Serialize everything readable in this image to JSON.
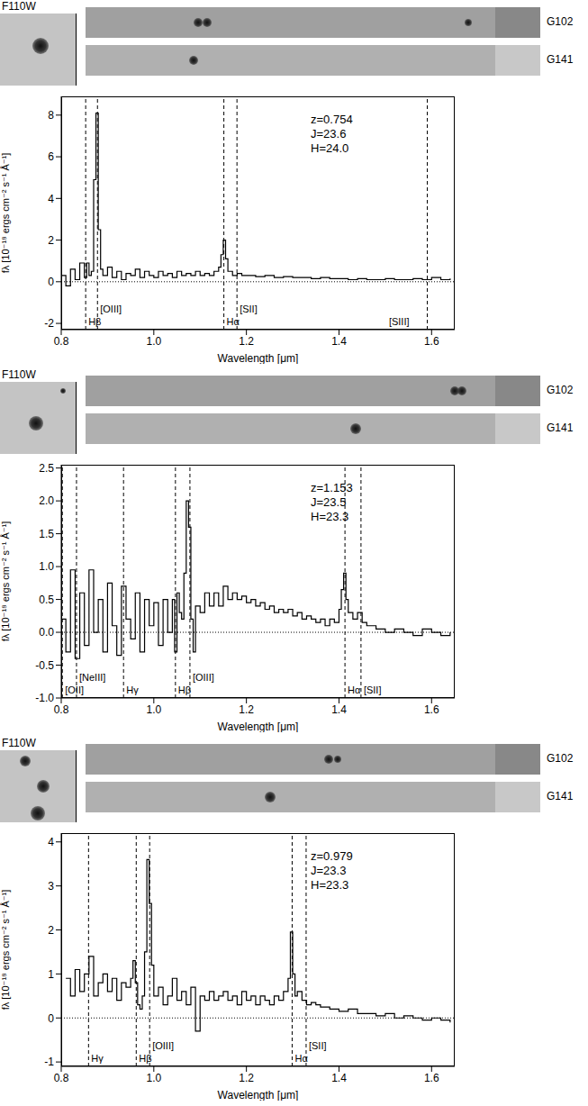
{
  "panels": [
    {
      "image": "F110W",
      "strips": [
        "G102",
        "G141"
      ]
    },
    {
      "image": "F110W",
      "strips": [
        "G102",
        "G141"
      ]
    },
    {
      "image": "F110W",
      "strips": [
        "G102",
        "G141"
      ]
    }
  ],
  "chart_data": [
    {
      "type": "line",
      "line_style": "step",
      "color": "#000000",
      "xlabel": "Wavelength [μm]",
      "ylabel": "fλ [10⁻¹⁸ ergs cm⁻² s⁻¹ Å⁻¹]",
      "xlim": [
        0.8,
        1.65
      ],
      "xticks": [
        0.8,
        {
          "value": 1,
          "label": "1.0"
        },
        1.2,
        1.4,
        1.6
      ],
      "ylim": [
        -2.3,
        8.9
      ],
      "yticks": [
        -2,
        0,
        2,
        4,
        6,
        8
      ],
      "annotations": [
        {
          "text": "z=0.754"
        },
        {
          "text": "J=23.6"
        },
        {
          "text": "H=24.0"
        },
        {
          "text": "Hβ",
          "x": 0.8528
        },
        {
          "text": "[OIII]",
          "x": 0.8783
        },
        {
          "text": "Hα",
          "x": 1.1513
        },
        {
          "text": "[SII]",
          "x": 1.1796
        },
        {
          "text": "[SIII]",
          "x": 1.5907
        }
      ],
      "x": [
        0.8,
        0.81,
        0.82,
        0.83,
        0.84,
        0.85,
        0.855,
        0.86,
        0.865,
        0.87,
        0.875,
        0.88,
        0.885,
        0.89,
        0.9,
        0.91,
        0.92,
        0.93,
        0.94,
        0.95,
        0.96,
        0.97,
        0.98,
        0.99,
        1.0,
        1.01,
        1.02,
        1.03,
        1.04,
        1.05,
        1.06,
        1.07,
        1.08,
        1.09,
        1.1,
        1.11,
        1.12,
        1.13,
        1.14,
        1.145,
        1.15,
        1.155,
        1.16,
        1.17,
        1.18,
        1.19,
        1.2,
        1.22,
        1.24,
        1.26,
        1.28,
        1.3,
        1.32,
        1.34,
        1.36,
        1.38,
        1.4,
        1.42,
        1.44,
        1.46,
        1.48,
        1.5,
        1.52,
        1.54,
        1.56,
        1.58,
        1.6,
        1.62,
        1.64
      ],
      "values": [
        0.3,
        -0.2,
        0.6,
        0.1,
        0.9,
        0.2,
        0.9,
        0.3,
        0.5,
        4.9,
        8.1,
        2.5,
        0.6,
        0.3,
        0.7,
        0.2,
        0.5,
        0.1,
        0.4,
        0.3,
        0.6,
        0.2,
        0.5,
        0.3,
        0.2,
        0.5,
        0.3,
        0.4,
        0.2,
        0.5,
        0.3,
        0.4,
        0.3,
        0.5,
        0.3,
        0.4,
        0.3,
        0.5,
        0.7,
        1.3,
        2.0,
        1.1,
        0.5,
        0.3,
        0.4,
        0.3,
        0.3,
        0.25,
        0.3,
        0.2,
        0.25,
        0.2,
        0.2,
        0.15,
        0.2,
        0.15,
        0.15,
        0.1,
        0.15,
        0.1,
        0.1,
        0.15,
        0.1,
        0.1,
        0.15,
        0.1,
        0.2,
        0.1,
        0.15
      ]
    },
    {
      "type": "line",
      "line_style": "step",
      "color": "#000000",
      "xlabel": "Wavelength [μm]",
      "ylabel": "fλ [10⁻¹⁸ ergs cm⁻² s⁻¹ Å⁻¹]",
      "xlim": [
        0.8,
        1.65
      ],
      "xticks": [
        0.8,
        {
          "value": 1,
          "label": "1.0"
        },
        1.2,
        1.4,
        1.6
      ],
      "ylim": [
        -1,
        2.55
      ],
      "yticks": [
        {
          "value": -1,
          "label": "-1.0"
        },
        -0.5,
        {
          "value": 0,
          "label": "0.0"
        },
        0.5,
        {
          "value": 1,
          "label": "1.0"
        },
        1.5,
        {
          "value": 2,
          "label": "2.0"
        },
        2.5
      ],
      "annotations": [
        {
          "text": "z=1.153"
        },
        {
          "text": "J=23.5"
        },
        {
          "text": "H=23.3"
        },
        {
          "text": "[OII]",
          "x": 0.8024
        },
        {
          "text": "[NeIII]",
          "x": 0.833
        },
        {
          "text": "Hγ",
          "x": 0.9346
        },
        {
          "text": "Hβ",
          "x": 1.0467
        },
        {
          "text": "[OIII]",
          "x": 1.078
        },
        {
          "text": "Hα",
          "x": 1.4129
        },
        {
          "text": "[SII]",
          "x": 1.4475
        }
      ],
      "x": [
        0.8,
        0.81,
        0.82,
        0.83,
        0.84,
        0.85,
        0.86,
        0.87,
        0.88,
        0.89,
        0.9,
        0.91,
        0.92,
        0.93,
        0.94,
        0.95,
        0.96,
        0.97,
        0.98,
        0.99,
        1.0,
        1.01,
        1.02,
        1.03,
        1.04,
        1.045,
        1.05,
        1.055,
        1.06,
        1.065,
        1.07,
        1.075,
        1.08,
        1.085,
        1.09,
        1.1,
        1.11,
        1.12,
        1.13,
        1.14,
        1.15,
        1.16,
        1.17,
        1.18,
        1.19,
        1.2,
        1.21,
        1.22,
        1.23,
        1.24,
        1.25,
        1.26,
        1.27,
        1.28,
        1.29,
        1.3,
        1.31,
        1.32,
        1.33,
        1.34,
        1.35,
        1.36,
        1.37,
        1.38,
        1.39,
        1.4,
        1.405,
        1.41,
        1.415,
        1.42,
        1.43,
        1.44,
        1.45,
        1.46,
        1.48,
        1.5,
        1.52,
        1.54,
        1.56,
        1.58,
        1.6,
        1.62,
        1.64
      ],
      "values": [
        0.2,
        -0.3,
        0.95,
        -0.4,
        0.6,
        -0.2,
        0.95,
        0.0,
        0.5,
        -0.3,
        0.75,
        0.1,
        -0.35,
        0.7,
        0.2,
        -0.1,
        0.6,
        -0.3,
        0.5,
        0.1,
        0.45,
        -0.2,
        0.5,
        0.0,
        0.5,
        -0.3,
        0.6,
        0.3,
        0.2,
        0.9,
        2.0,
        1.6,
        0.2,
        -0.3,
        0.4,
        0.3,
        0.6,
        0.4,
        0.6,
        0.4,
        0.7,
        0.5,
        0.6,
        0.5,
        0.55,
        0.45,
        0.5,
        0.4,
        0.45,
        0.35,
        0.4,
        0.3,
        0.35,
        0.3,
        0.35,
        0.25,
        0.3,
        0.2,
        0.25,
        0.2,
        0.15,
        0.2,
        0.1,
        0.2,
        0.15,
        0.35,
        0.65,
        0.9,
        0.5,
        0.3,
        0.2,
        0.3,
        0.15,
        0.1,
        0.05,
        0.0,
        0.05,
        0.0,
        -0.05,
        0.05,
        0.0,
        -0.05,
        0.0
      ]
    },
    {
      "type": "line",
      "line_style": "step",
      "color": "#000000",
      "xlabel": "Wavelength [μm]",
      "ylabel": "fλ [10⁻¹⁸ ergs cm⁻² s⁻¹ Å⁻¹]",
      "xlim": [
        0.8,
        1.65
      ],
      "xticks": [
        0.8,
        {
          "value": 1,
          "label": "1.0"
        },
        1.2,
        1.4,
        1.6
      ],
      "ylim": [
        -1.1,
        4.2
      ],
      "yticks": [
        -1,
        0,
        1,
        2,
        3,
        4
      ],
      "annotations": [
        {
          "text": "z=0.979"
        },
        {
          "text": "J=23.3"
        },
        {
          "text": "H=23.3"
        },
        {
          "text": "Hγ",
          "x": 0.859
        },
        {
          "text": "Hβ",
          "x": 0.962
        },
        {
          "text": "[OIII]",
          "x": 0.991
        },
        {
          "text": "Hα",
          "x": 1.2988
        },
        {
          "text": "[SII]",
          "x": 1.329
        }
      ],
      "x": [
        0.81,
        0.82,
        0.83,
        0.84,
        0.85,
        0.86,
        0.87,
        0.88,
        0.89,
        0.9,
        0.91,
        0.92,
        0.93,
        0.94,
        0.95,
        0.955,
        0.96,
        0.965,
        0.97,
        0.975,
        0.98,
        0.985,
        0.99,
        0.995,
        1.0,
        1.01,
        1.02,
        1.03,
        1.04,
        1.05,
        1.06,
        1.07,
        1.08,
        1.09,
        1.1,
        1.11,
        1.12,
        1.13,
        1.14,
        1.15,
        1.16,
        1.17,
        1.18,
        1.19,
        1.2,
        1.21,
        1.22,
        1.23,
        1.24,
        1.25,
        1.26,
        1.27,
        1.28,
        1.29,
        1.295,
        1.3,
        1.305,
        1.31,
        1.32,
        1.33,
        1.34,
        1.35,
        1.36,
        1.38,
        1.4,
        1.42,
        1.44,
        1.46,
        1.48,
        1.5,
        1.52,
        1.54,
        1.56,
        1.58,
        1.6,
        1.62,
        1.64
      ],
      "values": [
        0.9,
        0.5,
        1.1,
        0.6,
        1.0,
        1.4,
        0.5,
        0.8,
        1.0,
        0.6,
        0.9,
        0.4,
        0.8,
        0.7,
        0.9,
        1.3,
        0.8,
        0.3,
        0.2,
        0.5,
        1.5,
        3.6,
        2.6,
        1.2,
        0.5,
        0.7,
        0.3,
        0.5,
        0.9,
        0.4,
        0.6,
        0.3,
        0.7,
        -0.3,
        0.5,
        0.4,
        0.6,
        0.4,
        0.5,
        0.6,
        0.4,
        0.5,
        0.3,
        0.6,
        0.4,
        0.5,
        0.3,
        0.5,
        0.4,
        0.3,
        0.5,
        0.4,
        0.6,
        0.9,
        1.95,
        1.0,
        0.5,
        0.6,
        0.4,
        0.3,
        0.35,
        0.3,
        0.25,
        0.2,
        0.15,
        0.2,
        0.1,
        0.1,
        0.05,
        0.1,
        0.0,
        0.05,
        0.0,
        -0.05,
        0.0,
        -0.05,
        -0.1
      ]
    }
  ]
}
